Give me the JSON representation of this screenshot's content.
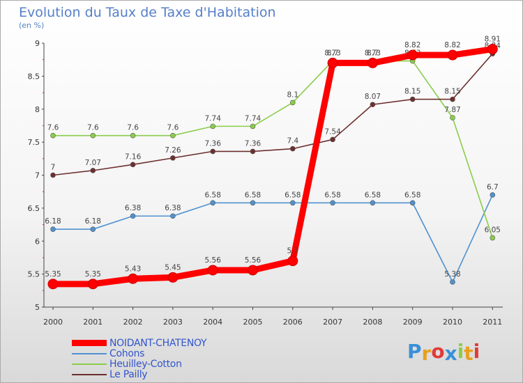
{
  "title": "Evolution du Taux de Taxe d'Habitation",
  "subtitle": "(en %)",
  "logo": "Proxiti",
  "chart_data": {
    "type": "line",
    "title": "Evolution du Taux de Taxe d'Habitation",
    "ylabel": "(en %)",
    "xlabel": "",
    "x": [
      "2000",
      "2001",
      "2002",
      "2003",
      "2004",
      "2005",
      "2006",
      "2007",
      "2008",
      "2009",
      "2010",
      "2011"
    ],
    "ylim": [
      5,
      9
    ],
    "yticks": [
      "5",
      "5.5",
      "6",
      "6.5",
      "7",
      "7.5",
      "8",
      "8.5",
      "9"
    ],
    "grid": false,
    "legend": "bottom-left",
    "series": [
      {
        "name": "NOIDANT-CHATENOY",
        "color": "#ff0000",
        "values": [
          5.35,
          5.35,
          5.43,
          5.45,
          5.56,
          5.56,
          5.7,
          8.7,
          8.7,
          8.82,
          8.82,
          8.91
        ],
        "labels": [
          "5.35",
          "5.35",
          "5.43",
          "5.45",
          "5.56",
          "5.56",
          "5.7",
          "8.7",
          "8.7",
          "8.82",
          "8.82",
          "8.91"
        ]
      },
      {
        "name": "Cohons",
        "color": "#4f92d0",
        "values": [
          6.18,
          6.18,
          6.38,
          6.38,
          6.58,
          6.58,
          6.58,
          6.58,
          6.58,
          6.58,
          5.38,
          6.7
        ],
        "labels": [
          "6.18",
          "6.18",
          "6.38",
          "6.38",
          "6.58",
          "6.58",
          "6.58",
          "6.58",
          "6.58",
          "6.58",
          "5.38",
          "6.7"
        ]
      },
      {
        "name": "Heuilley-Cotton",
        "color": "#8acd4a",
        "values": [
          7.6,
          7.6,
          7.6,
          7.6,
          7.74,
          7.74,
          8.1,
          8.73,
          8.73,
          8.73,
          7.87,
          6.05
        ],
        "labels": [
          "7.6",
          "7.6",
          "7.6",
          "7.6",
          "7.74",
          "7.74",
          "8.1",
          "8.73",
          "8.73",
          "8.73",
          "7.87",
          "6.05"
        ]
      },
      {
        "name": "Le Pailly",
        "color": "#6e2f2f",
        "values": [
          7,
          7.07,
          7.16,
          7.26,
          7.36,
          7.36,
          7.4,
          7.54,
          8.07,
          8.15,
          8.15,
          8.84
        ],
        "labels": [
          "7",
          "7.07",
          "7.16",
          "7.26",
          "7.36",
          "7.36",
          "7.4",
          "7.54",
          "8.07",
          "8.15",
          "8.15",
          "8.84"
        ]
      }
    ]
  }
}
